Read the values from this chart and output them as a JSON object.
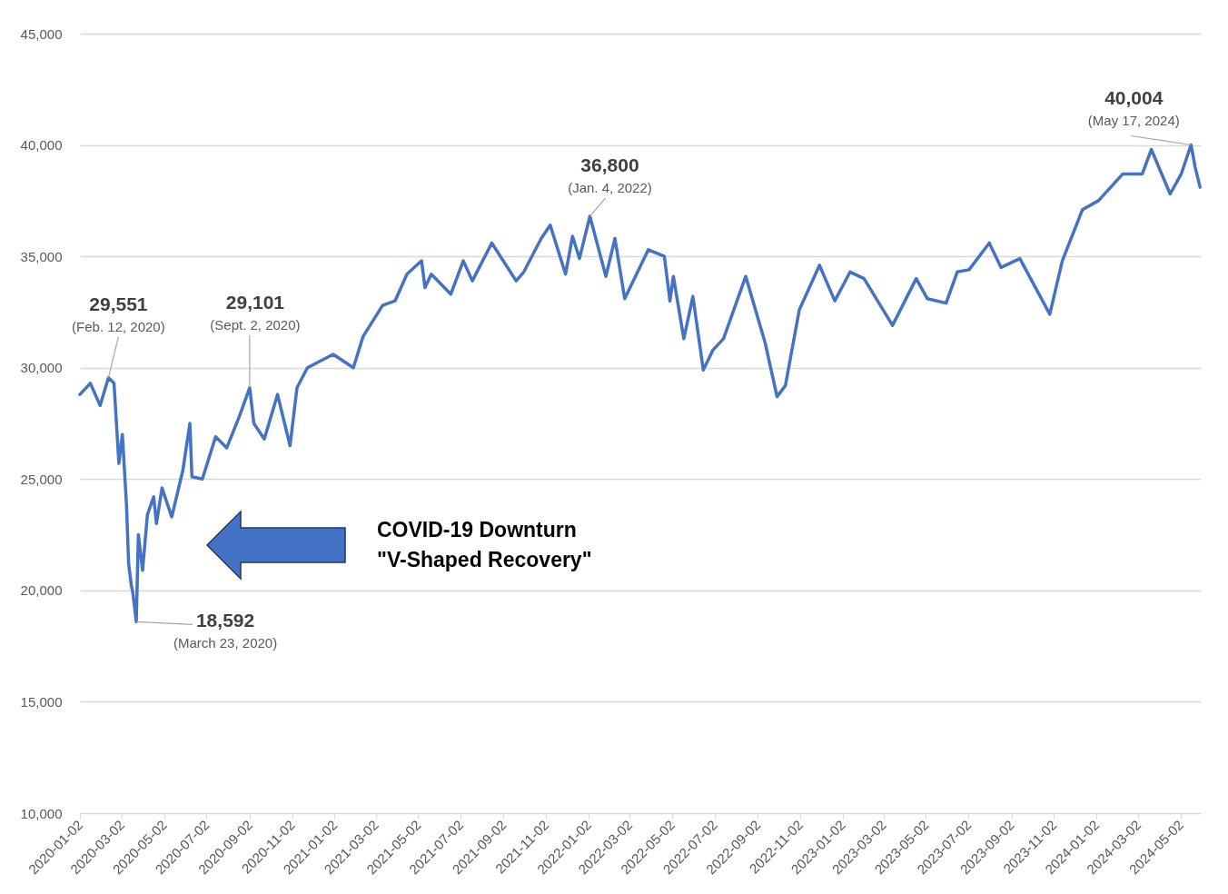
{
  "chart_data": {
    "type": "line",
    "color": "#4472c4",
    "x": [
      "2020-01-02",
      "2020-01-17",
      "2020-01-31",
      "2020-02-12",
      "2020-02-20",
      "2020-02-27",
      "2020-03-03",
      "2020-03-09",
      "2020-03-12",
      "2020-03-16",
      "2020-03-18",
      "2020-03-23",
      "2020-03-26",
      "2020-04-01",
      "2020-04-08",
      "2020-04-17",
      "2020-04-21",
      "2020-04-29",
      "2020-05-13",
      "2020-05-29",
      "2020-06-08",
      "2020-06-11",
      "2020-06-26",
      "2020-07-15",
      "2020-07-31",
      "2020-08-18",
      "2020-09-02",
      "2020-09-08",
      "2020-09-23",
      "2020-10-12",
      "2020-10-30",
      "2020-11-09",
      "2020-11-24",
      "2020-12-31",
      "2021-01-29",
      "2021-02-12",
      "2021-03-12",
      "2021-03-30",
      "2021-04-16",
      "2021-05-07",
      "2021-05-12",
      "2021-05-21",
      "2021-06-18",
      "2021-07-06",
      "2021-07-19",
      "2021-08-16",
      "2021-09-20",
      "2021-10-01",
      "2021-10-26",
      "2021-11-08",
      "2021-11-30",
      "2021-12-10",
      "2021-12-20",
      "2022-01-04",
      "2022-01-27",
      "2022-02-09",
      "2022-02-23",
      "2022-03-29",
      "2022-04-21",
      "2022-04-29",
      "2022-05-04",
      "2022-05-19",
      "2022-06-01",
      "2022-06-16",
      "2022-06-30",
      "2022-07-15",
      "2022-08-16",
      "2022-09-13",
      "2022-09-30",
      "2022-10-12",
      "2022-11-01",
      "2022-11-30",
      "2022-12-22",
      "2023-01-13",
      "2023-02-02",
      "2023-03-15",
      "2023-04-18",
      "2023-05-04",
      "2023-05-31",
      "2023-06-16",
      "2023-07-03",
      "2023-08-01",
      "2023-08-18",
      "2023-09-14",
      "2023-10-27",
      "2023-11-14",
      "2023-12-13",
      "2024-01-05",
      "2024-02-09",
      "2024-03-08",
      "2024-03-21",
      "2024-04-17",
      "2024-05-03",
      "2024-05-17",
      "2024-05-23",
      "2024-05-30"
    ],
    "values": [
      28800,
      29300,
      28300,
      29551,
      29300,
      25700,
      27000,
      23800,
      21200,
      20200,
      19900,
      18592,
      22500,
      20900,
      23400,
      24200,
      23000,
      24600,
      23300,
      25400,
      27500,
      25100,
      25000,
      26900,
      26400,
      27800,
      29101,
      27500,
      26800,
      28800,
      26500,
      29100,
      30000,
      30600,
      30000,
      31400,
      32800,
      33000,
      34200,
      34800,
      33600,
      34200,
      33300,
      34800,
      33900,
      35600,
      33900,
      34300,
      35800,
      36400,
      34200,
      35900,
      34900,
      36800,
      34100,
      35800,
      33100,
      35300,
      35000,
      33000,
      34100,
      31300,
      33200,
      29900,
      30800,
      31300,
      34100,
      31100,
      28700,
      29200,
      32600,
      34600,
      33000,
      34300,
      34000,
      31900,
      34000,
      33100,
      32900,
      34300,
      34400,
      35600,
      34500,
      34900,
      32400,
      34800,
      37100,
      37500,
      38700,
      38700,
      39800,
      37800,
      38700,
      40004,
      39000,
      38100
    ],
    "xlim": [
      "2020-01-02",
      "2024-05-31"
    ],
    "xticks": [
      "2020-01-02",
      "2020-03-02",
      "2020-05-02",
      "2020-07-02",
      "2020-09-02",
      "2020-11-02",
      "2021-01-02",
      "2021-03-02",
      "2021-05-02",
      "2021-07-02",
      "2021-09-02",
      "2021-11-02",
      "2022-01-02",
      "2022-03-02",
      "2022-05-02",
      "2022-07-02",
      "2022-09-02",
      "2022-11-02",
      "2023-01-02",
      "2023-03-02",
      "2023-05-02",
      "2023-07-02",
      "2023-09-02",
      "2023-11-02",
      "2024-01-02",
      "2024-03-02",
      "2024-05-02"
    ],
    "ylim": [
      10000,
      45000
    ],
    "yticks": [
      {
        "value": 10000,
        "label": "10,000"
      },
      {
        "value": 15000,
        "label": "15,000"
      },
      {
        "value": 20000,
        "label": "20,000"
      },
      {
        "value": 25000,
        "label": "25,000"
      },
      {
        "value": 30000,
        "label": "30,000"
      },
      {
        "value": 35000,
        "label": "35,000"
      },
      {
        "value": 40000,
        "label": "40,000"
      },
      {
        "value": 45000,
        "label": "45,000"
      }
    ],
    "grid": "y",
    "annotations": [
      {
        "text": "29,551",
        "x": "2020-02-12",
        "y": 29551
      },
      {
        "text": "(Feb. 12, 2020)",
        "x": "2020-02-12",
        "y": 29551
      },
      {
        "text": "29,101",
        "x": "2020-09-02",
        "y": 29101
      },
      {
        "text": "(Sept. 2, 2020)",
        "x": "2020-09-02",
        "y": 29101
      },
      {
        "text": "36,800",
        "x": "2022-01-04",
        "y": 36800
      },
      {
        "text": "(Jan. 4, 2022)",
        "x": "2022-01-04",
        "y": 36800
      },
      {
        "text": "18,592",
        "x": "2020-03-23",
        "y": 18592
      },
      {
        "text": "(March 23, 2020)",
        "x": "2020-03-23",
        "y": 18592
      },
      {
        "text": "40,004",
        "x": "2024-05-17",
        "y": 40004
      },
      {
        "text": "(May 17, 2024)",
        "x": "2024-05-17",
        "y": 40004
      },
      "COVID-19 Downturn",
      "\"V-Shaped Recovery\""
    ]
  }
}
